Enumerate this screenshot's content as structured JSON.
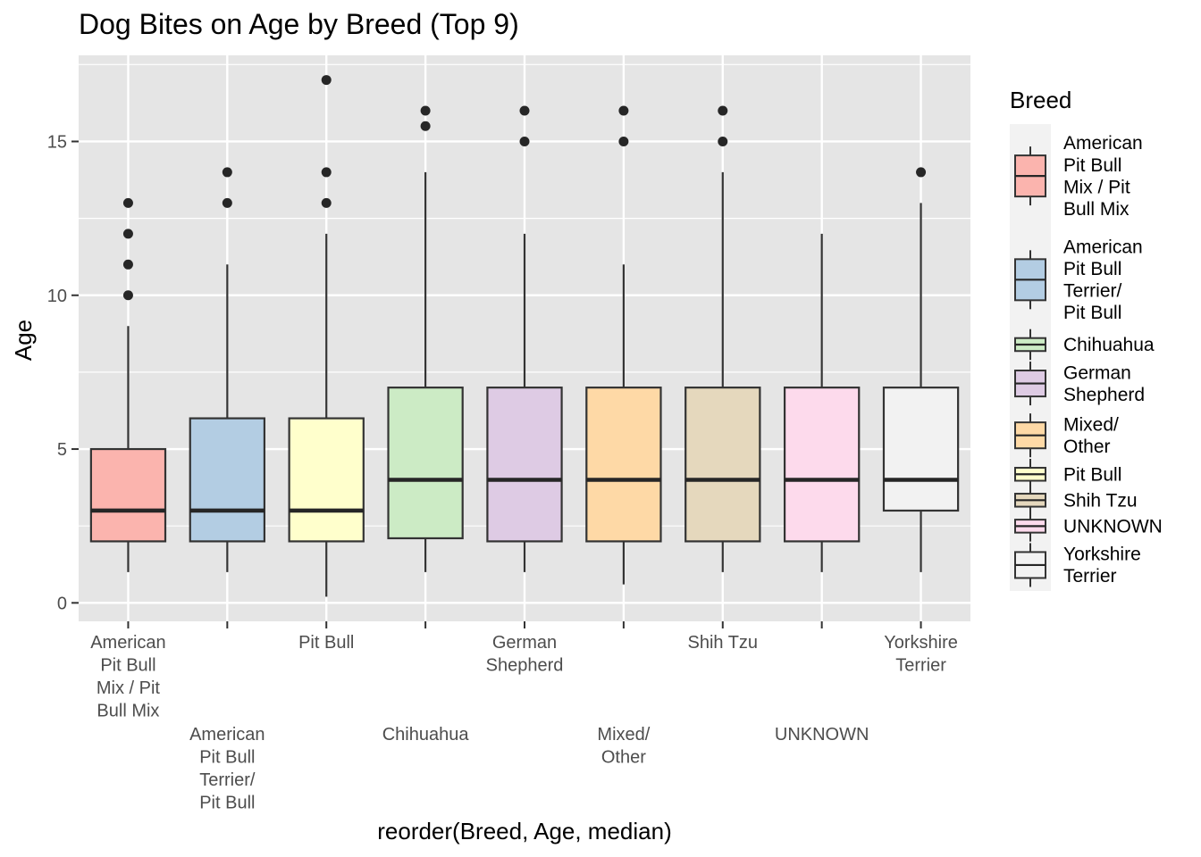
{
  "chart_data": {
    "type": "box",
    "title": "Dog Bites on Age by Breed (Top 9)",
    "xlabel": "reorder(Breed, Age, median)",
    "ylabel": "Age",
    "ylim": [
      -0.6,
      17.8
    ],
    "yticks": [
      0,
      5,
      10,
      15
    ],
    "grid": true,
    "legend": {
      "title": "Breed",
      "position": "right"
    },
    "categories": [
      "American Pit Bull Mix / Pit Bull Mix",
      "American Pit Bull Terrier/ Pit Bull",
      "Pit Bull",
      "Chihuahua",
      "German Shepherd",
      "Mixed/ Other",
      "Shih Tzu",
      "UNKNOWN",
      "Yorkshire Terrier"
    ],
    "series": [
      {
        "category": "American Pit Bull Mix / Pit Bull Mix",
        "color": "#FBB4AE",
        "whisker_low": 1,
        "q1": 2,
        "median": 3,
        "q3": 5,
        "whisker_high": 9,
        "outliers": [
          10,
          11,
          12,
          13
        ]
      },
      {
        "category": "American Pit Bull Terrier/ Pit Bull",
        "color": "#B3CDE3",
        "whisker_low": 1,
        "q1": 2,
        "median": 3,
        "q3": 6,
        "whisker_high": 11,
        "outliers": [
          13,
          14
        ]
      },
      {
        "category": "Pit Bull",
        "color": "#FFFFCC",
        "whisker_low": 0.2,
        "q1": 2,
        "median": 3,
        "q3": 6,
        "whisker_high": 12,
        "outliers": [
          13,
          14,
          17
        ]
      },
      {
        "category": "Chihuahua",
        "color": "#CCEBC5",
        "whisker_low": 1,
        "q1": 2.1,
        "median": 4,
        "q3": 7,
        "whisker_high": 14,
        "outliers": [
          15.5,
          16
        ]
      },
      {
        "category": "German Shepherd",
        "color": "#DECBE4",
        "whisker_low": 1,
        "q1": 2,
        "median": 4,
        "q3": 7,
        "whisker_high": 12,
        "outliers": [
          15,
          16
        ]
      },
      {
        "category": "Mixed/ Other",
        "color": "#FED9A6",
        "whisker_low": 0.6,
        "q1": 2,
        "median": 4,
        "q3": 7,
        "whisker_high": 11,
        "outliers": [
          15,
          16
        ]
      },
      {
        "category": "Shih Tzu",
        "color": "#E5D8BD",
        "whisker_low": 1,
        "q1": 2,
        "median": 4,
        "q3": 7,
        "whisker_high": 14,
        "outliers": [
          15,
          16
        ]
      },
      {
        "category": "UNKNOWN",
        "color": "#FDDAEC",
        "whisker_low": 1,
        "q1": 2,
        "median": 4,
        "q3": 7,
        "whisker_high": 12,
        "outliers": []
      },
      {
        "category": "Yorkshire Terrier",
        "color": "#F2F2F2",
        "whisker_low": 1,
        "q1": 3,
        "median": 4,
        "q3": 7,
        "whisker_high": 13,
        "outliers": [
          14
        ]
      }
    ],
    "x_tick_labels": [
      [
        "American",
        "Pit Bull",
        "Mix / Pit",
        "Bull Mix"
      ],
      [
        "American",
        "Pit Bull",
        "Terrier/",
        "Pit Bull"
      ],
      [
        "Pit Bull"
      ],
      [
        "Chihuahua"
      ],
      [
        "German",
        "Shepherd"
      ],
      [
        "Mixed/",
        "Other"
      ],
      [
        "Shih Tzu"
      ],
      [
        "UNKNOWN"
      ],
      [
        "Yorkshire",
        "Terrier"
      ]
    ],
    "legend_labels": [
      [
        "American",
        "Pit Bull",
        "Mix / Pit",
        "Bull Mix"
      ],
      [
        "American",
        "Pit Bull",
        "Terrier/",
        "Pit Bull"
      ],
      [
        "Chihuahua"
      ],
      [
        "German",
        "Shepherd"
      ],
      [
        "Mixed/",
        "Other"
      ],
      [
        "Pit Bull"
      ],
      [
        "Shih Tzu"
      ],
      [
        "UNKNOWN"
      ],
      [
        "Yorkshire",
        "Terrier"
      ]
    ],
    "style": {
      "panel_background": "#E5E5E5",
      "grid_color": "#FFFFFF",
      "box_stroke": "#333333",
      "median_stroke": "#262626",
      "outlier_color": "#262626"
    }
  }
}
